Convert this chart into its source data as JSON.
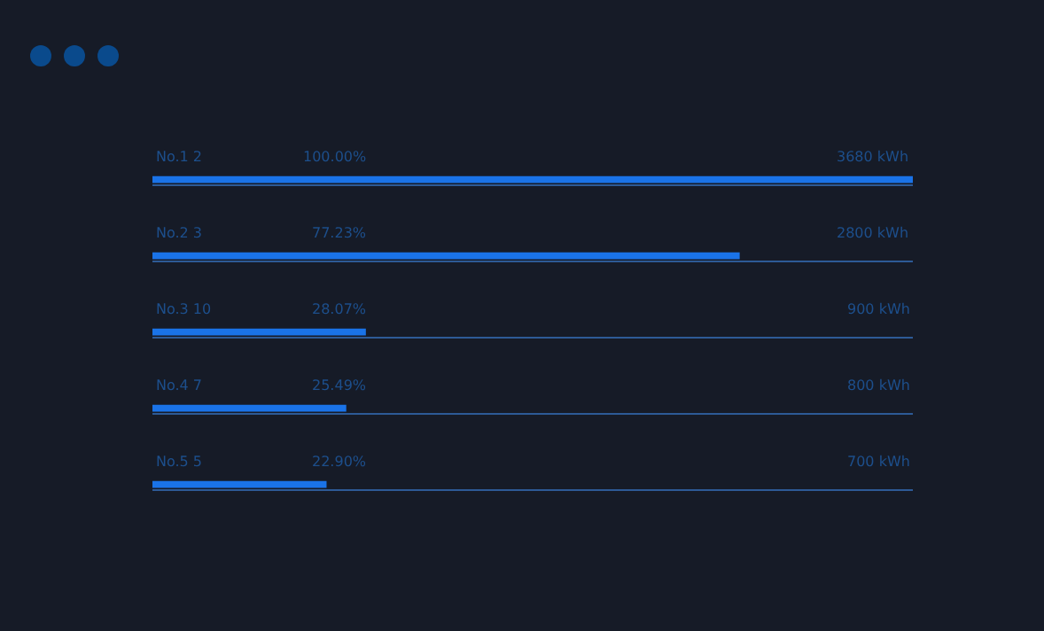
{
  "chart_data": {
    "type": "bar",
    "orientation": "horizontal",
    "categories": [
      "No.1 2",
      "No.2 3",
      "No.3 10",
      "No.4 7",
      "No.5 5"
    ],
    "values": [
      100,
      77.23,
      28.07,
      25.49,
      22.9
    ],
    "value_labels": [
      "100.00%",
      "77.23%",
      "28.07%",
      "25.49%",
      "22.90%"
    ],
    "annotations": [
      "3680 kWh",
      "2800 kWh",
      "900 kWh",
      "800 kWh",
      "700 kWh"
    ],
    "color": "#1a73e8",
    "xlim": [
      0,
      100
    ],
    "grid": "y"
  }
}
